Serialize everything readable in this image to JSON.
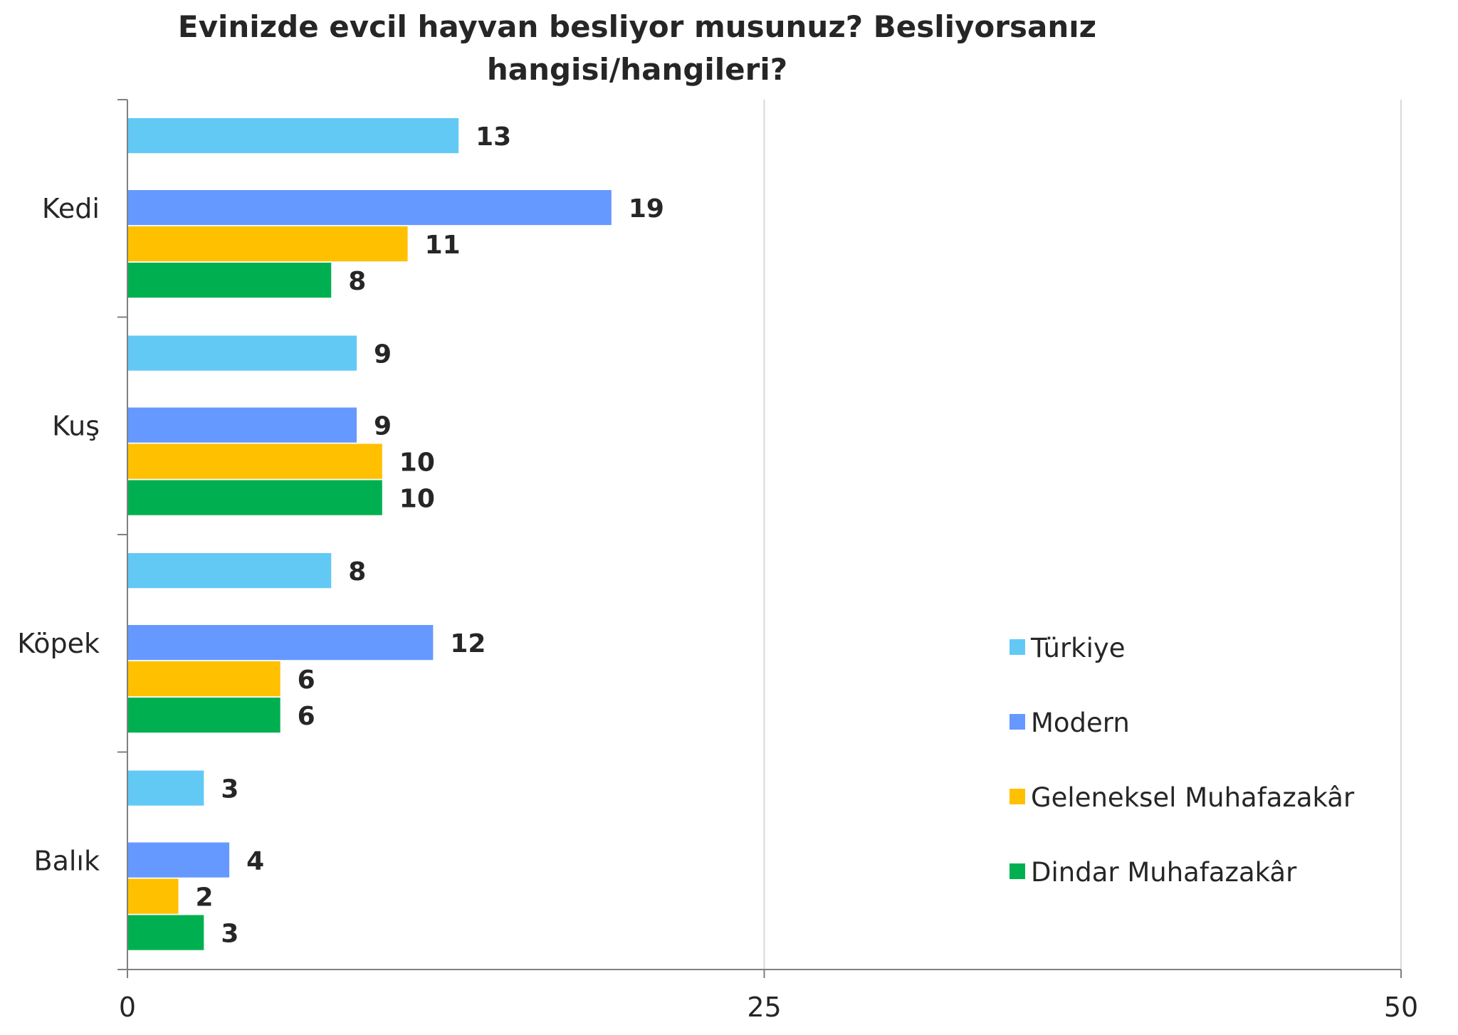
{
  "chart_data": {
    "type": "bar",
    "orientation": "horizontal",
    "title": "Evinizde evcil hayvan besliyor musunuz? Besliyorsanız hangisi/hangileri?",
    "categories": [
      "Kedi",
      "Kuş",
      "Köpek",
      "Balık"
    ],
    "series": [
      {
        "name": "Türkiye",
        "color": "#62C9F5",
        "values": [
          13,
          9,
          8,
          3
        ]
      },
      {
        "name": "Modern",
        "color": "#6699FF",
        "values": [
          19,
          9,
          12,
          4
        ]
      },
      {
        "name": "Geleneksel Muhafazakâr",
        "color": "#FFC000",
        "values": [
          11,
          10,
          6,
          2
        ]
      },
      {
        "name": "Dindar Muhafazakâr",
        "color": "#00B050",
        "values": [
          8,
          10,
          6,
          3
        ]
      }
    ],
    "xlim": [
      0,
      50
    ],
    "xticks": [
      0,
      25,
      50
    ],
    "xlabel": "",
    "ylabel": "",
    "grid": "vertical",
    "legend": "right"
  }
}
